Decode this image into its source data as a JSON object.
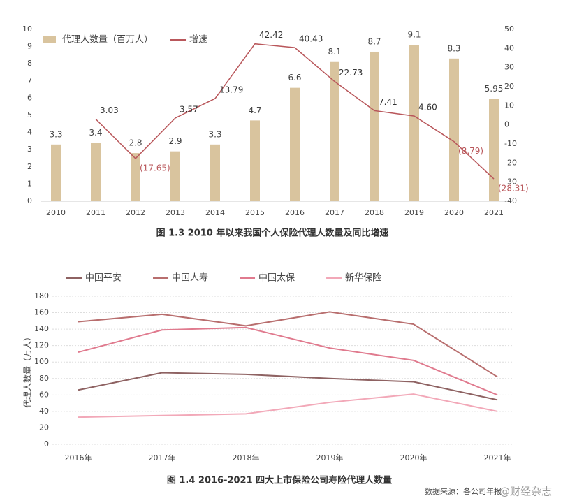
{
  "chart_data": [
    {
      "type": "combo",
      "title": "图 1.3   2010 年以来我国个人保险代理人数量及同比增速",
      "categories": [
        "2010",
        "2011",
        "2012",
        "2013",
        "2014",
        "2015",
        "2016",
        "2017",
        "2018",
        "2019",
        "2020",
        "2021"
      ],
      "series": [
        {
          "name": "代理人数量（百万人）",
          "type": "bar",
          "color": "#d9c49e",
          "values": [
            3.3,
            3.4,
            2.8,
            2.9,
            3.3,
            4.7,
            6.6,
            8.1,
            8.7,
            9.1,
            8.3,
            5.95
          ]
        },
        {
          "name": "增速",
          "type": "line",
          "axis": "y2",
          "color": "#b9575b",
          "values": [
            null,
            3.03,
            -17.65,
            3.57,
            13.79,
            42.42,
            40.43,
            22.73,
            7.41,
            4.6,
            -8.79,
            -28.31
          ],
          "value_labels": [
            null,
            "3.03",
            "(17.65)",
            "3.57",
            "13.79",
            "42.42",
            "40.43",
            "22.73",
            "7.41",
            "4.60",
            "(8.79)",
            "(28.31)"
          ]
        }
      ],
      "ylim": [
        0,
        10
      ],
      "yticks": [
        0,
        1,
        2,
        3,
        4,
        5,
        6,
        7,
        8,
        9,
        10
      ],
      "y2lim": [
        -40,
        50
      ],
      "y2ticks": [
        -40,
        -30,
        -20,
        -10,
        0,
        10,
        20,
        30,
        40,
        50
      ],
      "grid": false,
      "legend": "top-left"
    },
    {
      "type": "line",
      "title": "图 1.4   2016-2021 四大上市保险公司寿险代理人数量",
      "y_label": "代理人数量（万人）",
      "categories": [
        "2016年",
        "2017年",
        "2018年",
        "2019年",
        "2020年",
        "2021年"
      ],
      "series": [
        {
          "name": "中国平安",
          "color": "#8e6262",
          "values": [
            66,
            87,
            85,
            80,
            76,
            54
          ]
        },
        {
          "name": "中国人寿",
          "color": "#b86e6e",
          "values": [
            149,
            158,
            144,
            161,
            146,
            82
          ]
        },
        {
          "name": "中国太保",
          "color": "#e07a8e",
          "values": [
            112,
            139,
            142,
            117,
            102,
            60
          ]
        },
        {
          "name": "新华保险",
          "color": "#f2a8b8",
          "values": [
            33,
            35,
            37,
            51,
            61,
            40
          ]
        }
      ],
      "ylim": [
        0,
        180
      ],
      "yticks": [
        0,
        20,
        40,
        60,
        80,
        100,
        120,
        140,
        160,
        180
      ],
      "grid": true,
      "legend": "top",
      "source": "数据来源：各公司年报",
      "watermark": "@财经杂志"
    }
  ]
}
